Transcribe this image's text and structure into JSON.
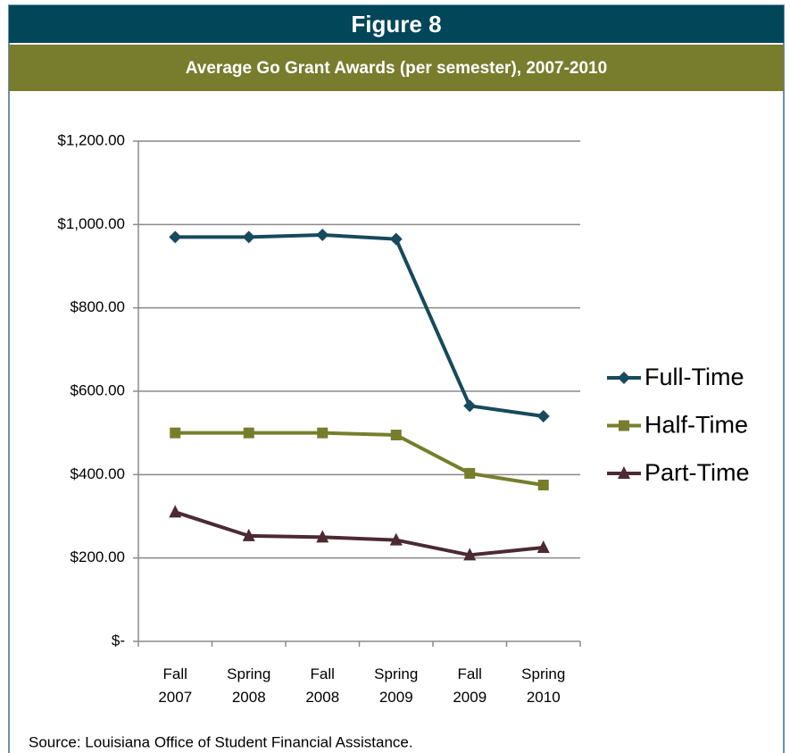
{
  "header": {
    "figure": "Figure 8"
  },
  "chart_data": {
    "type": "line",
    "title": "Average Go Grant Awards (per semester), 2007-2010",
    "categories": [
      "Fall 2007",
      "Spring 2008",
      "Fall 2008",
      "Spring 2009",
      "Fall 2009",
      "Spring 2010"
    ],
    "series": [
      {
        "name": "Full-Time",
        "color": "#164a5c",
        "marker": "diamond",
        "values": [
          970,
          970,
          975,
          965,
          565,
          540
        ]
      },
      {
        "name": "Half-Time",
        "color": "#767e2c",
        "marker": "square",
        "values": [
          500,
          500,
          500,
          495,
          403,
          375
        ]
      },
      {
        "name": "Part-Time",
        "color": "#4b2a34",
        "marker": "triangle",
        "values": [
          310,
          253,
          250,
          243,
          207,
          225
        ]
      }
    ],
    "ylim": [
      0,
      1200
    ],
    "yticks": [
      {
        "value": 0,
        "label": "$-"
      },
      {
        "value": 200,
        "label": "$200.00"
      },
      {
        "value": 400,
        "label": "$400.00"
      },
      {
        "value": 600,
        "label": "$600.00"
      },
      {
        "value": 800,
        "label": "$800.00"
      },
      {
        "value": 1000,
        "label": "$1,000.00"
      },
      {
        "value": 1200,
        "label": "$1,200.00"
      }
    ],
    "grid": true,
    "legend": "right"
  },
  "footer": {
    "source": "Source: Louisiana Office of Student  Financial Assistance."
  }
}
